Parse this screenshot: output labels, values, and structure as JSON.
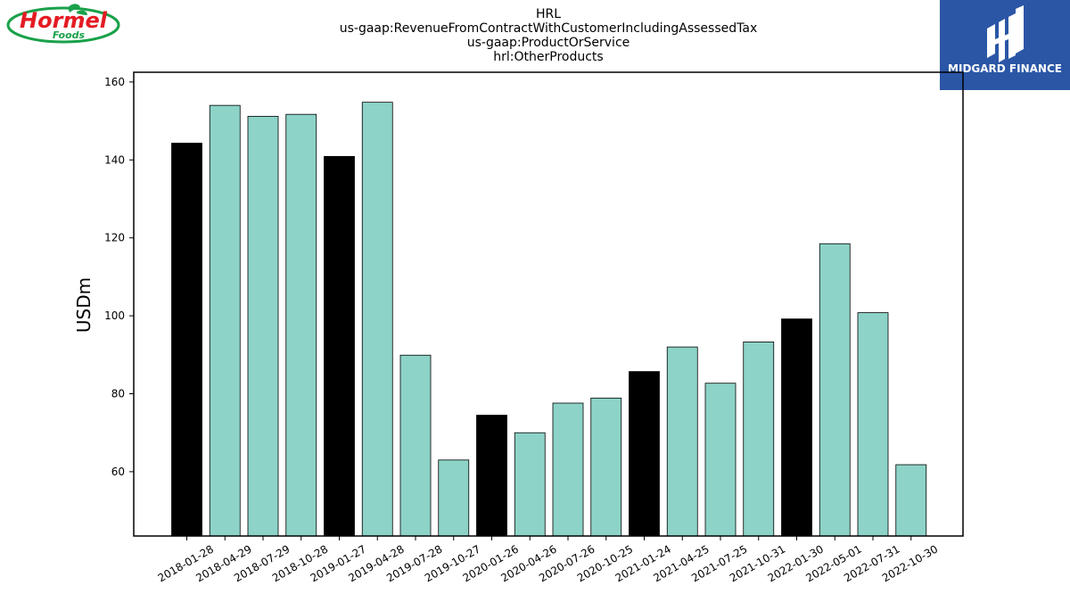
{
  "brand": {
    "company_logo_text": "Hormel",
    "company_logo_sub": "Foods",
    "publisher_logo_text": "MIDGARD FINANCE",
    "publisher_bg": "#2b56a6",
    "hormel_red": "#e41b23",
    "hormel_green": "#19a14a"
  },
  "chart_data": {
    "type": "bar",
    "title_lines": [
      "HRL",
      "us-gaap:RevenueFromContractWithCustomerIncludingAssessedTax",
      "us-gaap:ProductOrService",
      "hrl:OtherProducts"
    ],
    "xlabel": "",
    "ylabel": "USDm",
    "ylim": [
      43.5,
      162.5
    ],
    "yticks": [
      60,
      80,
      100,
      120,
      140,
      160
    ],
    "grid": false,
    "colors": {
      "default": "#8dd3c7",
      "highlight": "#000000",
      "edge": "#000000"
    },
    "categories": [
      "2018-01-28",
      "2018-04-29",
      "2018-07-29",
      "2018-10-28",
      "2019-01-27",
      "2019-04-28",
      "2019-07-28",
      "2019-10-27",
      "2020-01-26",
      "2020-04-26",
      "2020-07-26",
      "2020-10-25",
      "2021-01-24",
      "2021-04-25",
      "2021-07-25",
      "2021-10-31",
      "2022-01-30",
      "2022-05-01",
      "2022-07-31",
      "2022-10-30"
    ],
    "values": [
      144.3,
      154.0,
      151.2,
      151.7,
      140.9,
      154.8,
      89.9,
      63.0,
      74.5,
      70.0,
      77.6,
      78.9,
      85.7,
      92.0,
      82.7,
      93.3,
      99.2,
      118.5,
      100.8,
      61.8
    ],
    "highlight": [
      true,
      false,
      false,
      false,
      true,
      false,
      false,
      false,
      true,
      false,
      false,
      false,
      true,
      false,
      false,
      false,
      true,
      false,
      false,
      false
    ]
  }
}
